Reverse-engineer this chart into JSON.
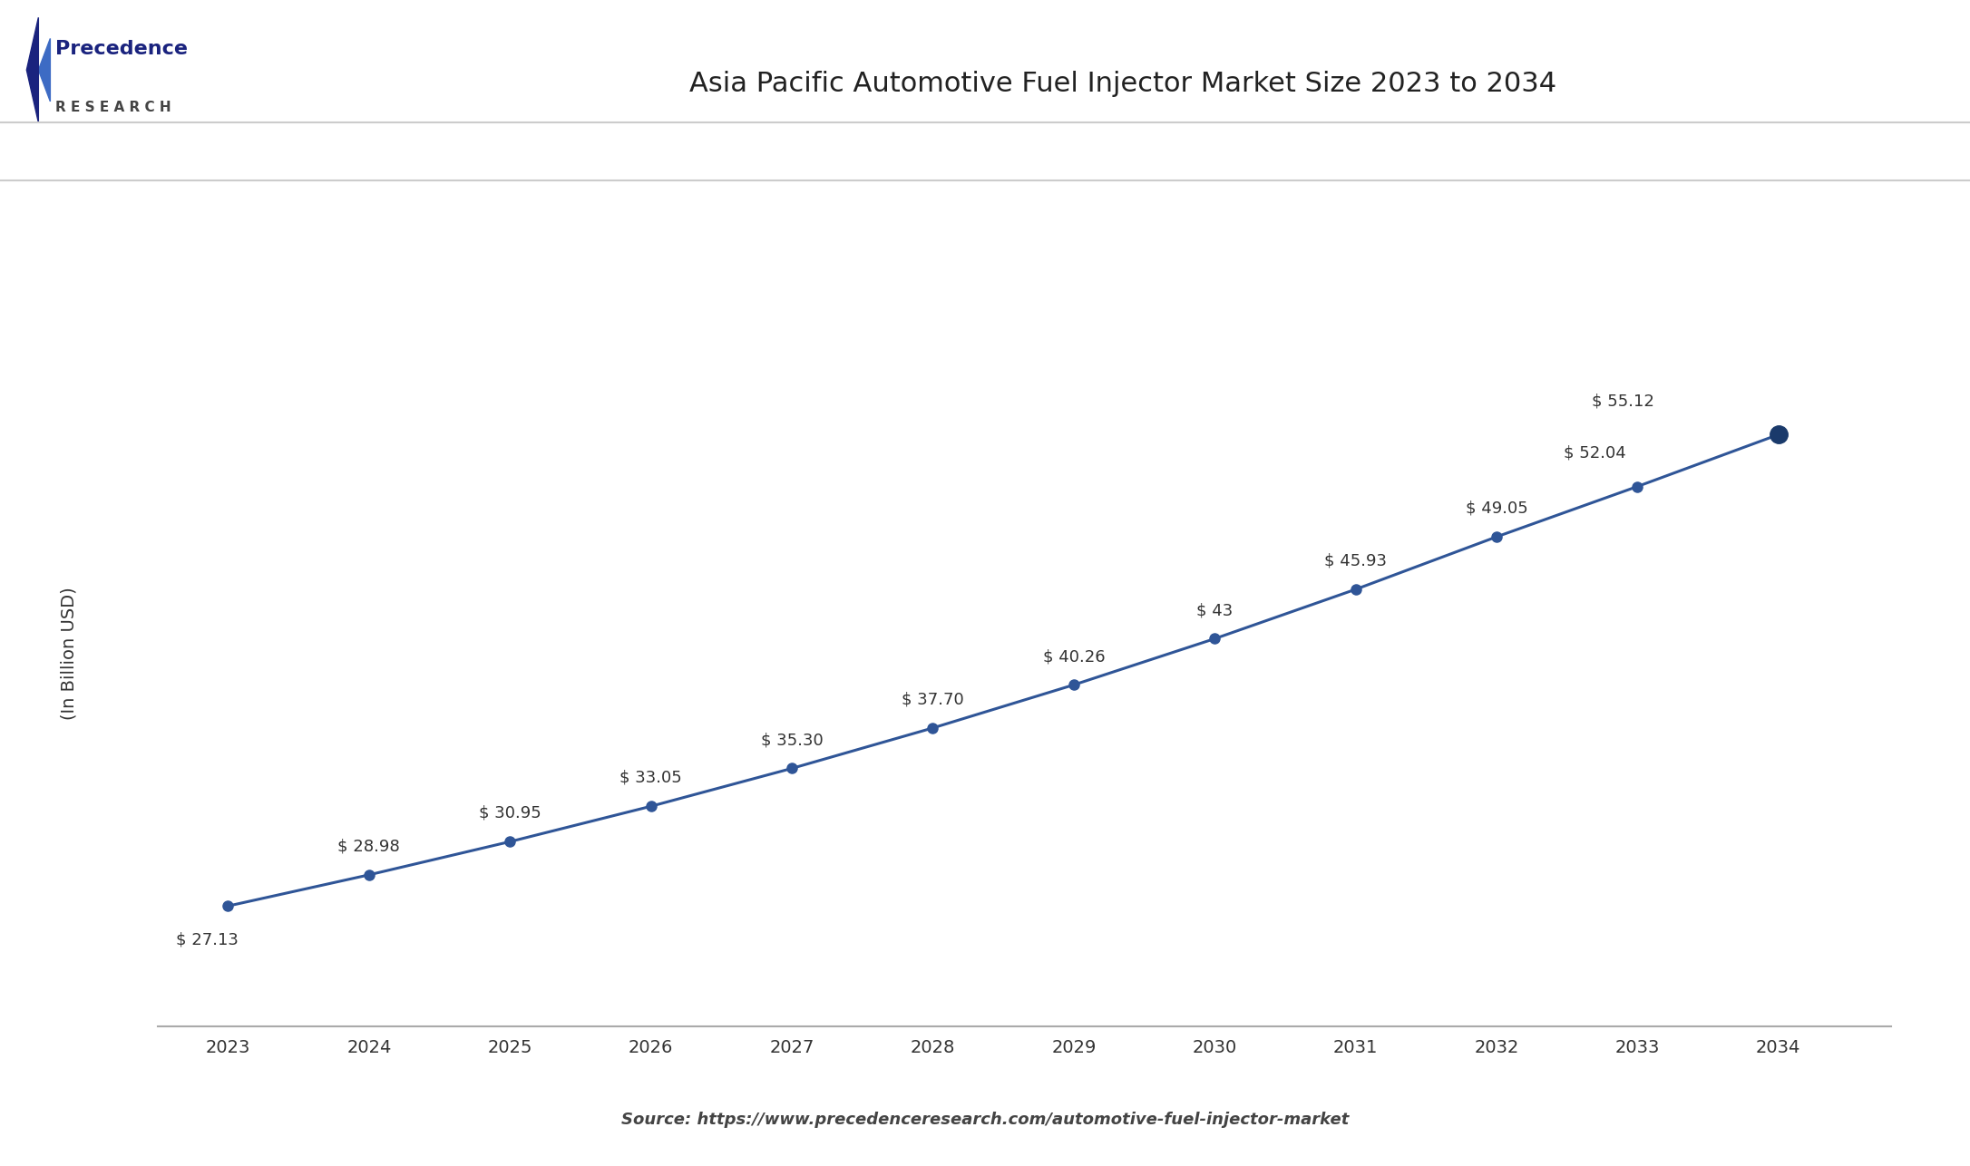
{
  "title": "Asia Pacific Automotive Fuel Injector Market Size 2023 to 2034",
  "ylabel": "(In Billion USD)",
  "source_text": "Source: https://www.precedenceresearch.com/automotive-fuel-injector-market",
  "years": [
    2023,
    2024,
    2025,
    2026,
    2027,
    2028,
    2029,
    2030,
    2031,
    2032,
    2033,
    2034
  ],
  "values": [
    27.13,
    28.98,
    30.95,
    33.05,
    35.3,
    37.7,
    40.26,
    43.0,
    45.93,
    49.05,
    52.04,
    55.12
  ],
  "labels": [
    "$ 27.13",
    "$ 28.98",
    "$ 30.95",
    "$ 33.05",
    "$ 35.30",
    "$ 37.70",
    "$ 40.26",
    "$ 43",
    "$ 45.93",
    "$ 49.05",
    "$ 52.04",
    "$ 55.12"
  ],
  "line_color": "#2f5597",
  "marker_color": "#2f5597",
  "last_marker_color": "#1a3a6b",
  "background_color": "#ffffff",
  "plot_bg_color": "#ffffff",
  "title_fontsize": 22,
  "label_fontsize": 13,
  "ylabel_fontsize": 14,
  "source_fontsize": 13,
  "tick_fontsize": 14,
  "ylim_min": 20,
  "ylim_max": 65,
  "header_line_color": "#cccccc",
  "axis_color": "#aaaaaa",
  "annotation_color": "#333333",
  "logo_main_color": "#1a237e",
  "logo_sub_color": "#444444",
  "precedence_text": "Precedence",
  "research_text": "R E S E A R C H"
}
